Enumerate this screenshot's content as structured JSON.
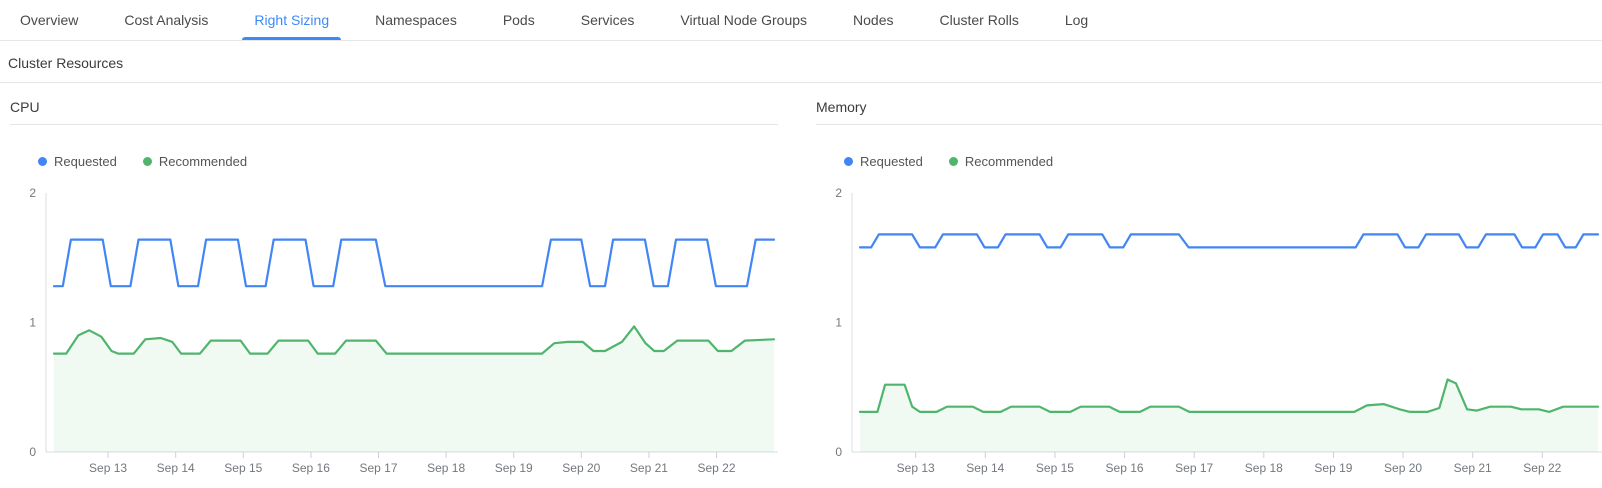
{
  "tabs": {
    "items": [
      {
        "label": "Overview",
        "active": false
      },
      {
        "label": "Cost Analysis",
        "active": false
      },
      {
        "label": "Right Sizing",
        "active": true
      },
      {
        "label": "Namespaces",
        "active": false
      },
      {
        "label": "Pods",
        "active": false
      },
      {
        "label": "Services",
        "active": false
      },
      {
        "label": "Virtual Node Groups",
        "active": false
      },
      {
        "label": "Nodes",
        "active": false
      },
      {
        "label": "Cluster Rolls",
        "active": false
      },
      {
        "label": "Log",
        "active": false
      }
    ]
  },
  "section": {
    "title": "Cluster Resources"
  },
  "colors": {
    "accent_blue": "#3d8af7",
    "series_requested": "#4285f4",
    "series_recommended": "#4fb56c",
    "recommended_fill": "rgba(79,181,108,0.08)",
    "axis_line": "#d9dce1",
    "tick_line": "#ccd1d7"
  },
  "charts": [
    {
      "title": "CPU",
      "legend": [
        {
          "label": "Requested"
        },
        {
          "label": "Recommended"
        }
      ]
    },
    {
      "title": "Memory",
      "legend": [
        {
          "label": "Requested"
        },
        {
          "label": "Recommended"
        }
      ]
    }
  ],
  "chart_data": [
    {
      "type": "line",
      "title": "CPU",
      "x_range": [
        12.2,
        22.85
      ],
      "y_range": [
        0,
        2
      ],
      "y_ticks": [
        0,
        1,
        2
      ],
      "grid": false,
      "legend_position": "top-left",
      "x_ticks": [
        {
          "v": 13,
          "label": "Sep 13"
        },
        {
          "v": 14,
          "label": "Sep 14"
        },
        {
          "v": 15,
          "label": "Sep 15"
        },
        {
          "v": 16,
          "label": "Sep 16"
        },
        {
          "v": 17,
          "label": "Sep 17"
        },
        {
          "v": 18,
          "label": "Sep 18"
        },
        {
          "v": 19,
          "label": "Sep 19"
        },
        {
          "v": 20,
          "label": "Sep 20"
        },
        {
          "v": 21,
          "label": "Sep 21"
        },
        {
          "v": 22,
          "label": "Sep 22"
        }
      ],
      "series": [
        {
          "name": "Requested",
          "color": "#4285f4",
          "fill": false,
          "points": [
            [
              12.2,
              1.28
            ],
            [
              12.33,
              1.28
            ],
            [
              12.45,
              1.64
            ],
            [
              12.92,
              1.64
            ],
            [
              13.04,
              1.28
            ],
            [
              13.33,
              1.28
            ],
            [
              13.45,
              1.64
            ],
            [
              13.92,
              1.64
            ],
            [
              14.04,
              1.28
            ],
            [
              14.33,
              1.28
            ],
            [
              14.45,
              1.64
            ],
            [
              14.92,
              1.64
            ],
            [
              15.04,
              1.28
            ],
            [
              15.33,
              1.28
            ],
            [
              15.45,
              1.64
            ],
            [
              15.92,
              1.64
            ],
            [
              16.04,
              1.28
            ],
            [
              16.33,
              1.28
            ],
            [
              16.45,
              1.64
            ],
            [
              16.96,
              1.64
            ],
            [
              17.1,
              1.28
            ],
            [
              19.42,
              1.28
            ],
            [
              19.55,
              1.64
            ],
            [
              20.0,
              1.64
            ],
            [
              20.13,
              1.28
            ],
            [
              20.35,
              1.28
            ],
            [
              20.47,
              1.64
            ],
            [
              20.94,
              1.64
            ],
            [
              21.07,
              1.28
            ],
            [
              21.28,
              1.28
            ],
            [
              21.4,
              1.64
            ],
            [
              21.86,
              1.64
            ],
            [
              21.99,
              1.28
            ],
            [
              22.45,
              1.28
            ],
            [
              22.58,
              1.64
            ],
            [
              22.85,
              1.64
            ]
          ]
        },
        {
          "name": "Recommended",
          "color": "#4fb56c",
          "fill": true,
          "fill_color": "rgba(79,181,108,0.08)",
          "points": [
            [
              12.2,
              0.76
            ],
            [
              12.38,
              0.76
            ],
            [
              12.56,
              0.9
            ],
            [
              12.72,
              0.94
            ],
            [
              12.9,
              0.89
            ],
            [
              13.05,
              0.78
            ],
            [
              13.15,
              0.76
            ],
            [
              13.38,
              0.76
            ],
            [
              13.55,
              0.87
            ],
            [
              13.78,
              0.88
            ],
            [
              13.95,
              0.85
            ],
            [
              14.08,
              0.76
            ],
            [
              14.36,
              0.76
            ],
            [
              14.52,
              0.86
            ],
            [
              14.96,
              0.86
            ],
            [
              15.1,
              0.76
            ],
            [
              15.36,
              0.76
            ],
            [
              15.52,
              0.86
            ],
            [
              15.96,
              0.86
            ],
            [
              16.1,
              0.76
            ],
            [
              16.36,
              0.76
            ],
            [
              16.52,
              0.86
            ],
            [
              16.96,
              0.86
            ],
            [
              17.12,
              0.76
            ],
            [
              19.42,
              0.76
            ],
            [
              19.6,
              0.84
            ],
            [
              19.8,
              0.85
            ],
            [
              20.02,
              0.85
            ],
            [
              20.18,
              0.78
            ],
            [
              20.35,
              0.78
            ],
            [
              20.6,
              0.85
            ],
            [
              20.78,
              0.97
            ],
            [
              20.95,
              0.84
            ],
            [
              21.08,
              0.78
            ],
            [
              21.22,
              0.78
            ],
            [
              21.42,
              0.86
            ],
            [
              21.88,
              0.86
            ],
            [
              22.02,
              0.78
            ],
            [
              22.22,
              0.78
            ],
            [
              22.42,
              0.86
            ],
            [
              22.85,
              0.87
            ]
          ]
        }
      ]
    },
    {
      "type": "line",
      "title": "Memory",
      "x_range": [
        12.2,
        22.8
      ],
      "y_range": [
        0,
        2
      ],
      "y_ticks": [
        0,
        1,
        2
      ],
      "grid": false,
      "legend_position": "top-left",
      "x_ticks": [
        {
          "v": 13,
          "label": "Sep 13"
        },
        {
          "v": 14,
          "label": "Sep 14"
        },
        {
          "v": 15,
          "label": "Sep 15"
        },
        {
          "v": 16,
          "label": "Sep 16"
        },
        {
          "v": 17,
          "label": "Sep 17"
        },
        {
          "v": 18,
          "label": "Sep 18"
        },
        {
          "v": 19,
          "label": "Sep 19"
        },
        {
          "v": 20,
          "label": "Sep 20"
        },
        {
          "v": 21,
          "label": "Sep 21"
        },
        {
          "v": 22,
          "label": "Sep 22"
        }
      ],
      "series": [
        {
          "name": "Requested",
          "color": "#4285f4",
          "fill": false,
          "points": [
            [
              12.2,
              1.58
            ],
            [
              12.36,
              1.58
            ],
            [
              12.47,
              1.68
            ],
            [
              12.95,
              1.68
            ],
            [
              13.06,
              1.58
            ],
            [
              13.28,
              1.58
            ],
            [
              13.39,
              1.68
            ],
            [
              13.88,
              1.68
            ],
            [
              13.99,
              1.58
            ],
            [
              14.18,
              1.58
            ],
            [
              14.29,
              1.68
            ],
            [
              14.78,
              1.68
            ],
            [
              14.89,
              1.58
            ],
            [
              15.08,
              1.58
            ],
            [
              15.19,
              1.68
            ],
            [
              15.68,
              1.68
            ],
            [
              15.79,
              1.58
            ],
            [
              15.98,
              1.58
            ],
            [
              16.09,
              1.68
            ],
            [
              16.78,
              1.68
            ],
            [
              16.92,
              1.58
            ],
            [
              19.32,
              1.58
            ],
            [
              19.43,
              1.68
            ],
            [
              19.92,
              1.68
            ],
            [
              20.03,
              1.58
            ],
            [
              20.22,
              1.58
            ],
            [
              20.33,
              1.68
            ],
            [
              20.8,
              1.68
            ],
            [
              20.91,
              1.58
            ],
            [
              21.08,
              1.58
            ],
            [
              21.19,
              1.68
            ],
            [
              21.6,
              1.68
            ],
            [
              21.71,
              1.58
            ],
            [
              21.9,
              1.58
            ],
            [
              22.01,
              1.68
            ],
            [
              22.22,
              1.68
            ],
            [
              22.33,
              1.58
            ],
            [
              22.48,
              1.58
            ],
            [
              22.59,
              1.68
            ],
            [
              22.8,
              1.68
            ]
          ]
        },
        {
          "name": "Recommended",
          "color": "#4fb56c",
          "fill": true,
          "fill_color": "rgba(79,181,108,0.08)",
          "points": [
            [
              12.2,
              0.31
            ],
            [
              12.45,
              0.31
            ],
            [
              12.56,
              0.52
            ],
            [
              12.84,
              0.52
            ],
            [
              12.95,
              0.35
            ],
            [
              13.06,
              0.31
            ],
            [
              13.3,
              0.31
            ],
            [
              13.45,
              0.35
            ],
            [
              13.82,
              0.35
            ],
            [
              13.97,
              0.31
            ],
            [
              14.22,
              0.31
            ],
            [
              14.37,
              0.35
            ],
            [
              14.78,
              0.35
            ],
            [
              14.93,
              0.31
            ],
            [
              15.22,
              0.31
            ],
            [
              15.37,
              0.35
            ],
            [
              15.78,
              0.35
            ],
            [
              15.93,
              0.31
            ],
            [
              16.22,
              0.31
            ],
            [
              16.37,
              0.35
            ],
            [
              16.78,
              0.35
            ],
            [
              16.93,
              0.31
            ],
            [
              19.3,
              0.31
            ],
            [
              19.48,
              0.36
            ],
            [
              19.72,
              0.37
            ],
            [
              19.95,
              0.33
            ],
            [
              20.1,
              0.31
            ],
            [
              20.35,
              0.31
            ],
            [
              20.52,
              0.34
            ],
            [
              20.64,
              0.56
            ],
            [
              20.76,
              0.53
            ],
            [
              20.92,
              0.33
            ],
            [
              21.06,
              0.32
            ],
            [
              21.25,
              0.35
            ],
            [
              21.55,
              0.35
            ],
            [
              21.7,
              0.33
            ],
            [
              21.95,
              0.33
            ],
            [
              22.1,
              0.31
            ],
            [
              22.3,
              0.35
            ],
            [
              22.8,
              0.35
            ]
          ]
        }
      ]
    }
  ]
}
